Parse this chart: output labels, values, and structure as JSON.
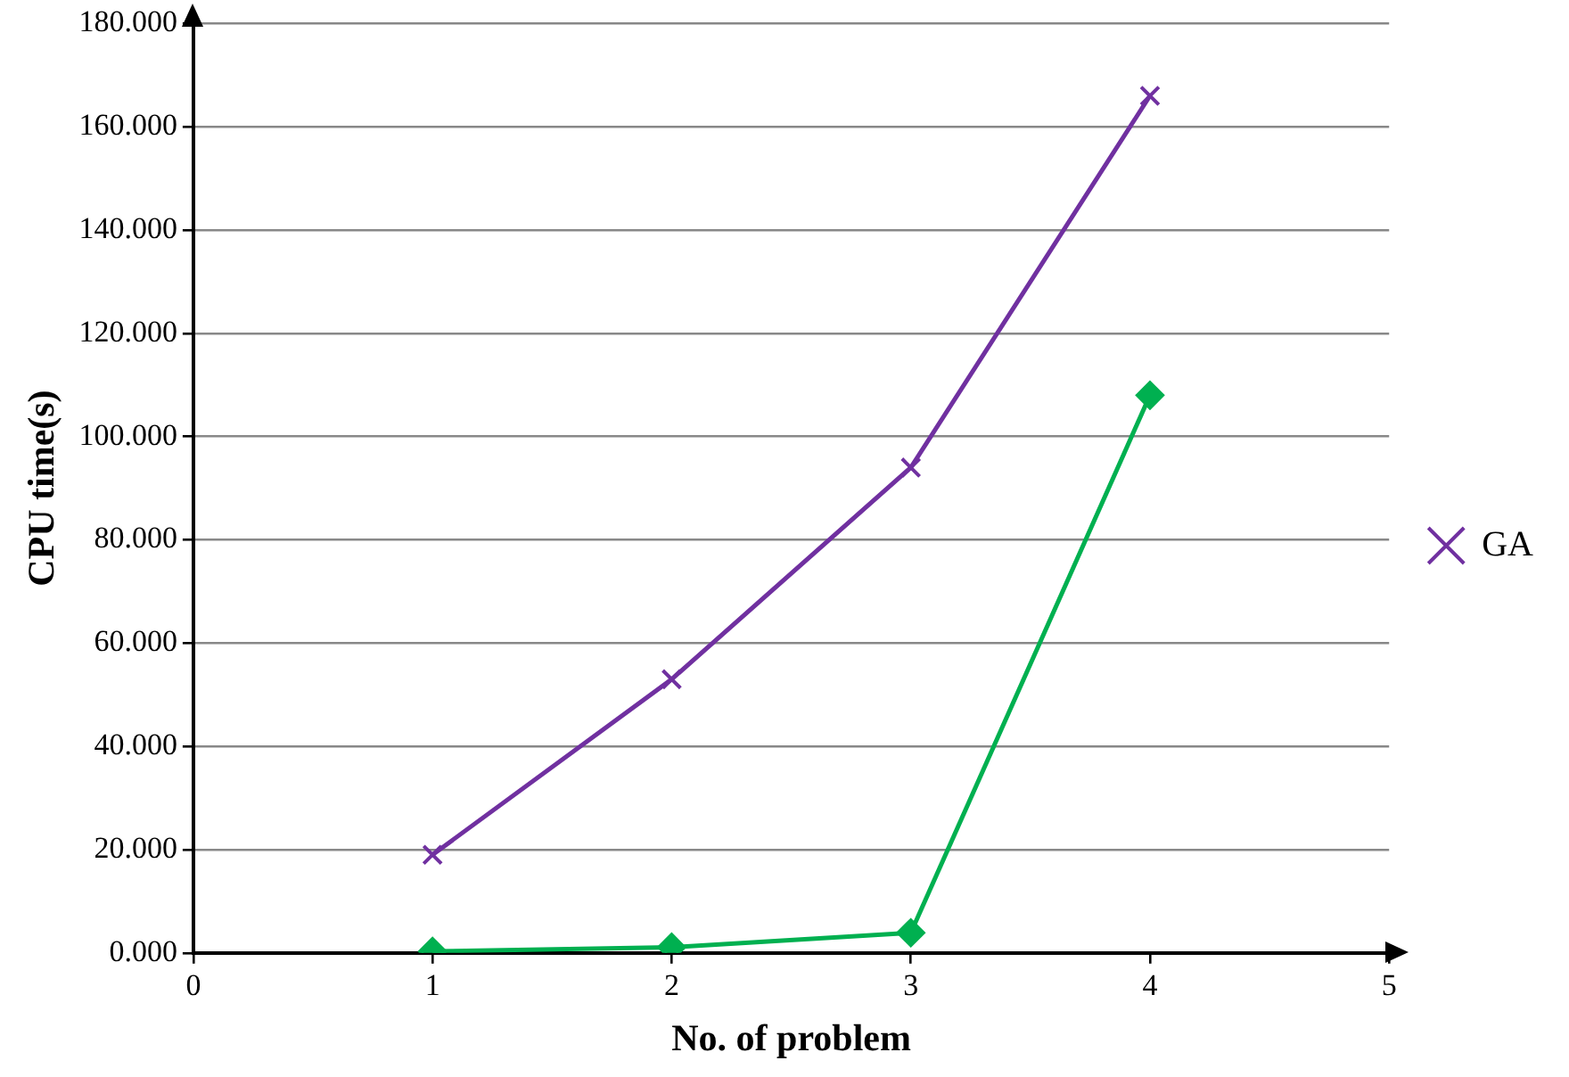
{
  "chart_data": {
    "type": "line",
    "xlabel": "No. of problem",
    "ylabel": "CPU time(s)",
    "xlim": [
      0,
      5
    ],
    "xticks": [
      0,
      1,
      2,
      3,
      4,
      5
    ],
    "ylim": [
      0,
      180
    ],
    "yticks": [
      {
        "value": 0,
        "label": "0.000"
      },
      {
        "value": 20,
        "label": "20.000"
      },
      {
        "value": 40,
        "label": "40.000"
      },
      {
        "value": 60,
        "label": "60.000"
      },
      {
        "value": 80,
        "label": "80.000"
      },
      {
        "value": 100,
        "label": "100.000"
      },
      {
        "value": 120,
        "label": "120.000"
      },
      {
        "value": 140,
        "label": "140.000"
      },
      {
        "value": 160,
        "label": "160.000"
      },
      {
        "value": 180,
        "label": "180.000"
      }
    ],
    "grid": "y",
    "legend": "right",
    "series": [
      {
        "color": "#00b050",
        "marker": "diamond",
        "x": [
          1,
          2,
          3,
          4
        ],
        "values": [
          0.3,
          1.1,
          3.9,
          108
        ]
      },
      {
        "name": "GA",
        "color": "#7030a0",
        "marker": "cross",
        "x": [
          1,
          2,
          3,
          4
        ],
        "values": [
          19,
          53,
          94,
          166
        ]
      }
    ]
  }
}
